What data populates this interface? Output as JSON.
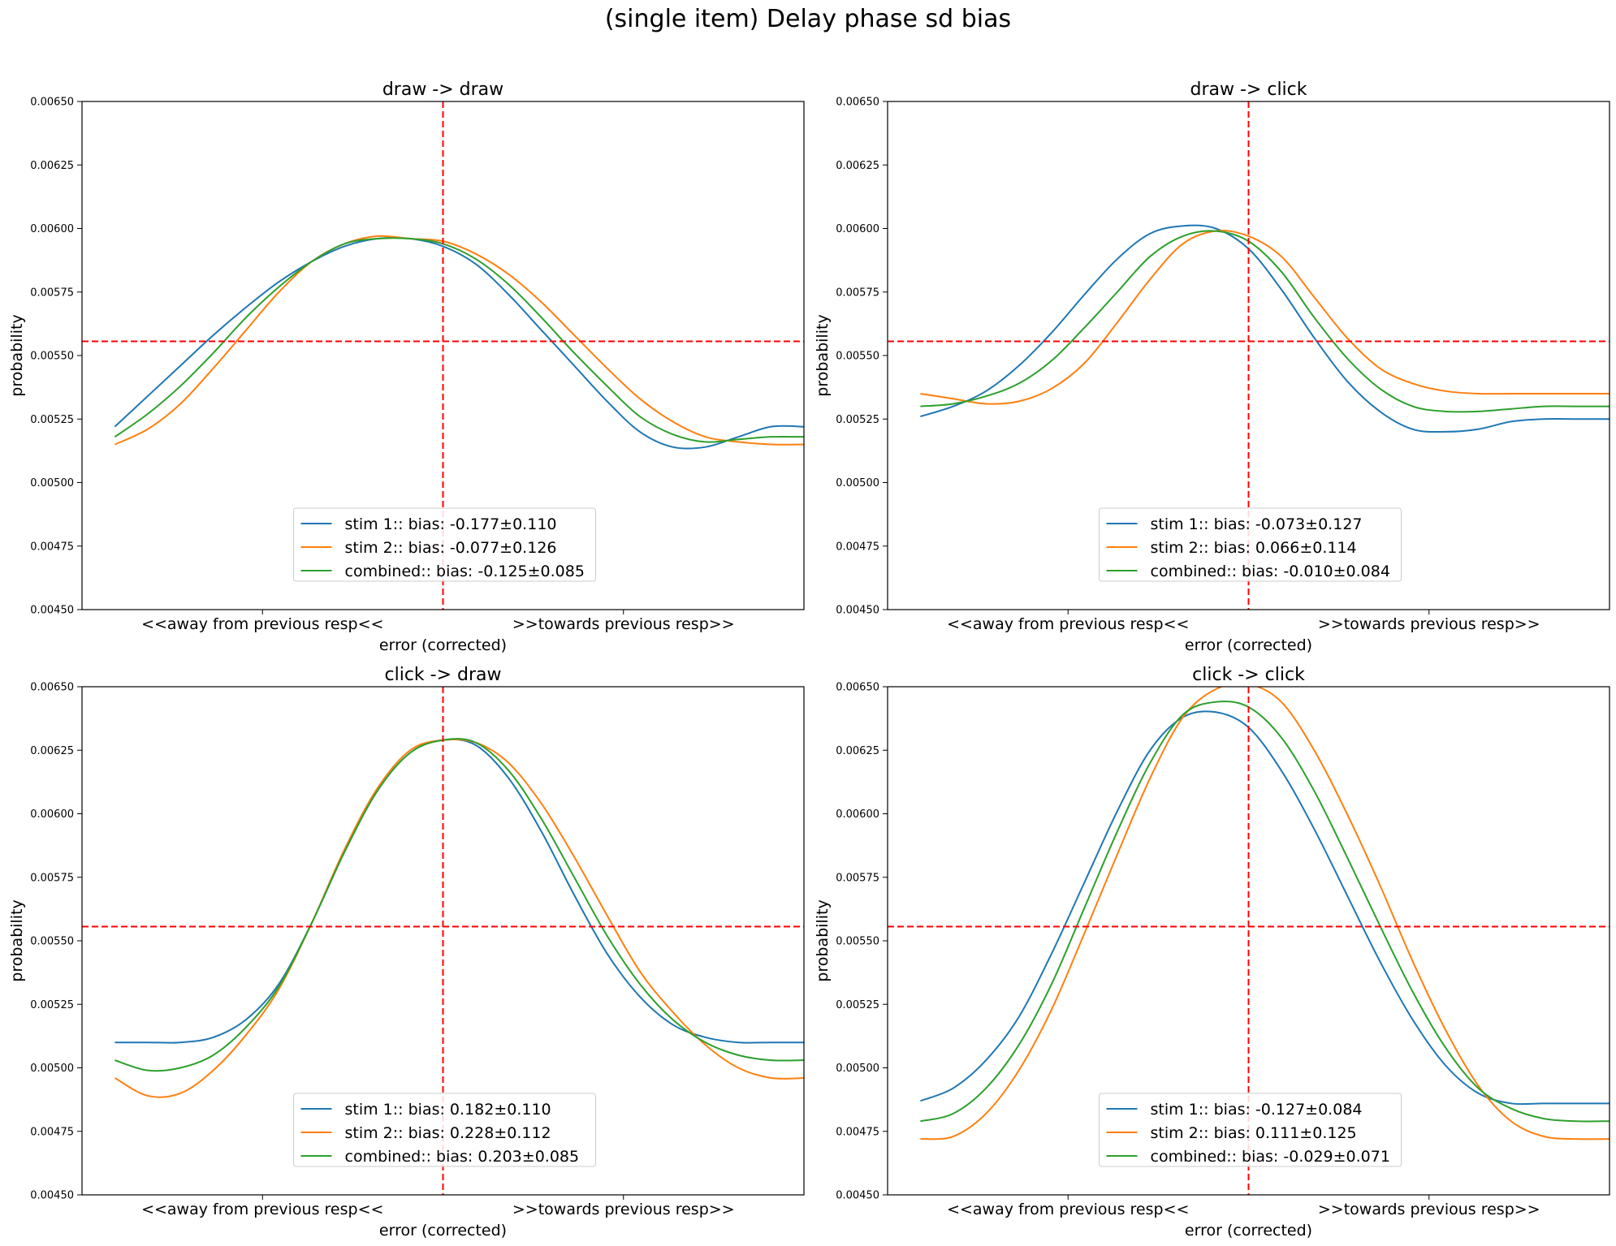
{
  "chart_data": {
    "suptitle": "(single item) Delay phase sd bias",
    "colors": {
      "stim1": "#1f77b4",
      "stim2": "#ff7f0e",
      "combined": "#2ca02c",
      "ref": "#ff0000"
    },
    "ylim": [
      0.0045,
      0.0065
    ],
    "yticks": [
      "0.00450",
      "0.00475",
      "0.00500",
      "0.00525",
      "0.00550",
      "0.00575",
      "0.00600",
      "0.00625",
      "0.00650"
    ],
    "xlim": [
      -110,
      110
    ],
    "x_ticklabels": [
      "<<away from previous resp<<",
      ">>towards previous resp>>"
    ],
    "x_tick_positions": [
      -55,
      55
    ],
    "xlabel": "error (corrected)",
    "ylabel": "probability",
    "hline_y": 0.005556,
    "vline_x": 0,
    "subplots": [
      {
        "type": "line",
        "title": "draw -> draw",
        "x": [
          -100,
          -90,
          -80,
          -70,
          -60,
          -50,
          -40,
          -30,
          -20,
          -10,
          0,
          10,
          20,
          30,
          40,
          50,
          60,
          70,
          80,
          90,
          100,
          110
        ],
        "series": [
          {
            "name": "stim 1:: bias: -0.177±0.110",
            "values": [
              0.00522,
              0.00534,
              0.00546,
              0.00558,
              0.00569,
              0.00579,
              0.00587,
              0.00593,
              0.00596,
              0.00596,
              0.00593,
              0.00586,
              0.00574,
              0.0056,
              0.00546,
              0.00532,
              0.0052,
              0.00514,
              0.00514,
              0.00518,
              0.00522,
              0.00522
            ]
          },
          {
            "name": "stim 2:: bias: -0.077±0.126",
            "values": [
              0.00515,
              0.00521,
              0.00531,
              0.00545,
              0.0056,
              0.00575,
              0.00587,
              0.00594,
              0.00597,
              0.00596,
              0.00595,
              0.0059,
              0.00582,
              0.00571,
              0.00558,
              0.00545,
              0.00533,
              0.00524,
              0.00518,
              0.00516,
              0.00515,
              0.00515
            ]
          },
          {
            "name": "combined:: bias: -0.125±0.085",
            "values": [
              0.00518,
              0.00527,
              0.00538,
              0.00551,
              0.00565,
              0.00577,
              0.00587,
              0.00594,
              0.00596,
              0.00596,
              0.00594,
              0.00588,
              0.00578,
              0.00565,
              0.00551,
              0.00538,
              0.00526,
              0.00519,
              0.00516,
              0.00517,
              0.00518,
              0.00518
            ]
          }
        ]
      },
      {
        "type": "line",
        "title": "draw -> click",
        "x": [
          -100,
          -90,
          -80,
          -70,
          -60,
          -50,
          -40,
          -30,
          -20,
          -10,
          0,
          10,
          20,
          30,
          40,
          50,
          60,
          70,
          80,
          90,
          100,
          110
        ],
        "series": [
          {
            "name": "stim 1:: bias: -0.073±0.127",
            "values": [
              0.00526,
              0.0053,
              0.00536,
              0.00546,
              0.00559,
              0.00574,
              0.00588,
              0.00598,
              0.00601,
              0.006,
              0.00592,
              0.00576,
              0.00557,
              0.0054,
              0.00528,
              0.00521,
              0.0052,
              0.00521,
              0.00524,
              0.00525,
              0.00525,
              0.00525
            ]
          },
          {
            "name": "stim 2:: bias: 0.066±0.114",
            "values": [
              0.00535,
              0.00533,
              0.00531,
              0.00532,
              0.00537,
              0.00547,
              0.00563,
              0.0058,
              0.00594,
              0.00599,
              0.00597,
              0.00589,
              0.00573,
              0.00557,
              0.00545,
              0.00539,
              0.00536,
              0.00535,
              0.00535,
              0.00535,
              0.00535,
              0.00535
            ]
          },
          {
            "name": "combined:: bias: -0.010±0.084",
            "values": [
              0.0053,
              0.00531,
              0.00534,
              0.00539,
              0.00548,
              0.00561,
              0.00575,
              0.00589,
              0.00597,
              0.00599,
              0.00595,
              0.00583,
              0.00565,
              0.00549,
              0.00537,
              0.0053,
              0.00528,
              0.00528,
              0.00529,
              0.0053,
              0.0053,
              0.0053
            ]
          }
        ]
      },
      {
        "type": "line",
        "title": "click -> draw",
        "x": [
          -100,
          -90,
          -80,
          -70,
          -60,
          -50,
          -40,
          -30,
          -20,
          -10,
          0,
          10,
          20,
          30,
          40,
          50,
          60,
          70,
          80,
          90,
          100,
          110
        ],
        "series": [
          {
            "name": "stim 1:: bias: 0.182±0.110",
            "values": [
              0.0051,
              0.0051,
              0.0051,
              0.00512,
              0.00519,
              0.00533,
              0.00557,
              0.00585,
              0.00609,
              0.00624,
              0.00629,
              0.00627,
              0.00614,
              0.00593,
              0.00568,
              0.00545,
              0.00528,
              0.00517,
              0.00512,
              0.0051,
              0.0051,
              0.0051
            ]
          },
          {
            "name": "stim 2:: bias: 0.228±0.112",
            "values": [
              0.00496,
              0.00489,
              0.0049,
              0.00499,
              0.00513,
              0.00531,
              0.00557,
              0.00586,
              0.0061,
              0.00625,
              0.00629,
              0.00628,
              0.0062,
              0.00604,
              0.00583,
              0.0056,
              0.00538,
              0.00522,
              0.00509,
              0.005,
              0.00496,
              0.00496
            ]
          },
          {
            "name": "combined:: bias: 0.203±0.085",
            "values": [
              0.00503,
              0.00499,
              0.005,
              0.00505,
              0.00516,
              0.00532,
              0.00557,
              0.00585,
              0.00609,
              0.00624,
              0.00629,
              0.00628,
              0.00617,
              0.00598,
              0.00575,
              0.00552,
              0.00533,
              0.00519,
              0.0051,
              0.00505,
              0.00503,
              0.00503
            ]
          }
        ]
      },
      {
        "type": "line",
        "title": "click -> click",
        "x": [
          -100,
          -90,
          -80,
          -70,
          -60,
          -50,
          -40,
          -30,
          -20,
          -10,
          0,
          10,
          20,
          30,
          40,
          50,
          60,
          70,
          80,
          90,
          100,
          110
        ],
        "series": [
          {
            "name": "stim 1:: bias: -0.127±0.084",
            "values": [
              0.00487,
              0.00492,
              0.00503,
              0.0052,
              0.00545,
              0.00573,
              0.00601,
              0.00625,
              0.00638,
              0.0064,
              0.00634,
              0.00617,
              0.00594,
              0.00568,
              0.00542,
              0.00519,
              0.00501,
              0.0049,
              0.00486,
              0.00486,
              0.00486,
              0.00486
            ]
          },
          {
            "name": "stim 2:: bias: 0.111±0.125",
            "values": [
              0.00472,
              0.00473,
              0.00482,
              0.00499,
              0.00523,
              0.00553,
              0.00584,
              0.00614,
              0.00638,
              0.00649,
              0.00651,
              0.00644,
              0.00625,
              0.006,
              0.00572,
              0.00542,
              0.00515,
              0.00493,
              0.00479,
              0.00473,
              0.00472,
              0.00472
            ]
          },
          {
            "name": "combined:: bias: -0.029±0.071",
            "values": [
              0.00479,
              0.00482,
              0.00492,
              0.00509,
              0.00533,
              0.00563,
              0.00593,
              0.0062,
              0.00639,
              0.00644,
              0.00642,
              0.0063,
              0.00609,
              0.00583,
              0.00556,
              0.0053,
              0.00508,
              0.00492,
              0.00484,
              0.0048,
              0.00479,
              0.00479
            ]
          }
        ]
      }
    ]
  }
}
